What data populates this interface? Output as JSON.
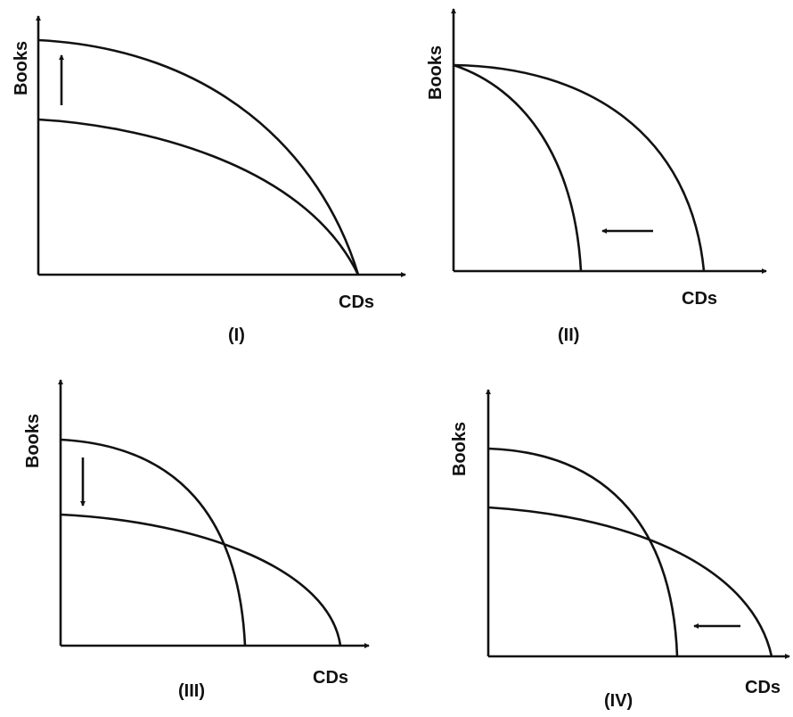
{
  "panels": [
    {
      "id": "I",
      "panel_label": "(I)",
      "y_axis_label": "Books",
      "x_axis_label": "CDs",
      "shift": "outward along Books axis",
      "arrow_direction": "up",
      "curves": [
        "inner curve",
        "outer curve"
      ]
    },
    {
      "id": "II",
      "panel_label": "(II)",
      "y_axis_label": "Books",
      "x_axis_label": "CDs",
      "shift": "inward along CDs axis",
      "arrow_direction": "left",
      "curves": [
        "outer curve",
        "inner curve"
      ]
    },
    {
      "id": "III",
      "panel_label": "(III)",
      "y_axis_label": "Books",
      "x_axis_label": "CDs",
      "shift": "down on Books axis, out on CDs axis",
      "arrow_direction": "down",
      "curves": [
        "original curve",
        "new curve"
      ]
    },
    {
      "id": "IV",
      "panel_label": "(IV)",
      "y_axis_label": "Books",
      "x_axis_label": "CDs",
      "shift": "up on Books axis, in on CDs axis",
      "arrow_direction": "left",
      "curves": [
        "original curve",
        "new curve"
      ]
    }
  ],
  "colors": {
    "ink": "#111111",
    "background": "#ffffff"
  }
}
